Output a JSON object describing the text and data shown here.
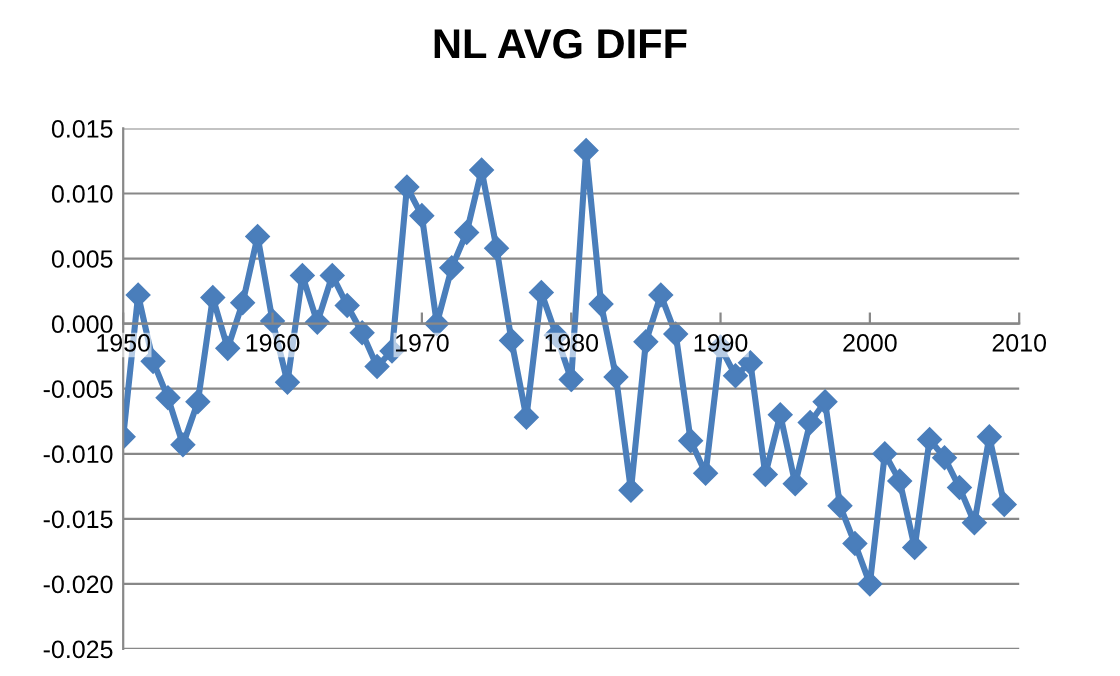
{
  "chart_data": {
    "type": "line",
    "title": "NL AVG DIFF",
    "x": [
      1950,
      1951,
      1952,
      1953,
      1954,
      1955,
      1956,
      1957,
      1958,
      1959,
      1960,
      1961,
      1962,
      1963,
      1964,
      1965,
      1966,
      1967,
      1968,
      1969,
      1970,
      1971,
      1972,
      1973,
      1974,
      1975,
      1976,
      1977,
      1978,
      1979,
      1980,
      1981,
      1982,
      1983,
      1984,
      1985,
      1986,
      1987,
      1988,
      1989,
      1990,
      1991,
      1992,
      1993,
      1994,
      1995,
      1996,
      1997,
      1998,
      1999,
      2000,
      2001,
      2002,
      2003,
      2004,
      2005,
      2006,
      2007,
      2008,
      2009
    ],
    "series": [
      {
        "color": "#4a7ebb",
        "values": [
          -0.0087,
          0.0022,
          -0.0029,
          -0.0057,
          -0.0093,
          -0.006,
          0.002,
          -0.0019,
          0.0016,
          0.0067,
          0.0002,
          -0.0045,
          0.0037,
          0.0001,
          0.0037,
          0.0014,
          -0.0007,
          -0.0033,
          -0.0021,
          0.0105,
          0.0083,
          0.0,
          0.0043,
          0.007,
          0.0118,
          0.0058,
          -0.0013,
          -0.0072,
          0.0024,
          -0.0009,
          -0.0043,
          0.0133,
          0.0015,
          -0.0041,
          -0.0128,
          -0.0014,
          0.0022,
          -0.0008,
          -0.009,
          -0.0115,
          -0.0018,
          -0.004,
          -0.003,
          -0.0116,
          -0.007,
          -0.0123,
          -0.0076,
          -0.006,
          -0.014,
          -0.0169,
          -0.02,
          -0.01,
          -0.0121,
          -0.0172,
          -0.0089,
          -0.0103,
          -0.0126,
          -0.0153,
          -0.0087,
          -0.0139
        ]
      }
    ],
    "xlim": [
      1950,
      2010
    ],
    "xticks": [
      1950,
      1960,
      1970,
      1980,
      1990,
      2000,
      2010
    ],
    "ylim": [
      -0.025,
      0.015
    ],
    "yticks": [
      {
        "value": -0.025,
        "label": "-0.025"
      },
      {
        "value": -0.02,
        "label": "-0.020"
      },
      {
        "value": -0.015,
        "label": "-0.015"
      },
      {
        "value": -0.01,
        "label": "-0.010"
      },
      {
        "value": -0.005,
        "label": "-0.005"
      },
      {
        "value": 0,
        "label": "0.000"
      },
      {
        "value": 0.005,
        "label": "0.005"
      },
      {
        "value": 0.01,
        "label": "0.010"
      },
      {
        "value": 0.015,
        "label": "0.015"
      }
    ],
    "grid": "y",
    "marker": "diamond",
    "line_style": "solid",
    "legend": false
  }
}
